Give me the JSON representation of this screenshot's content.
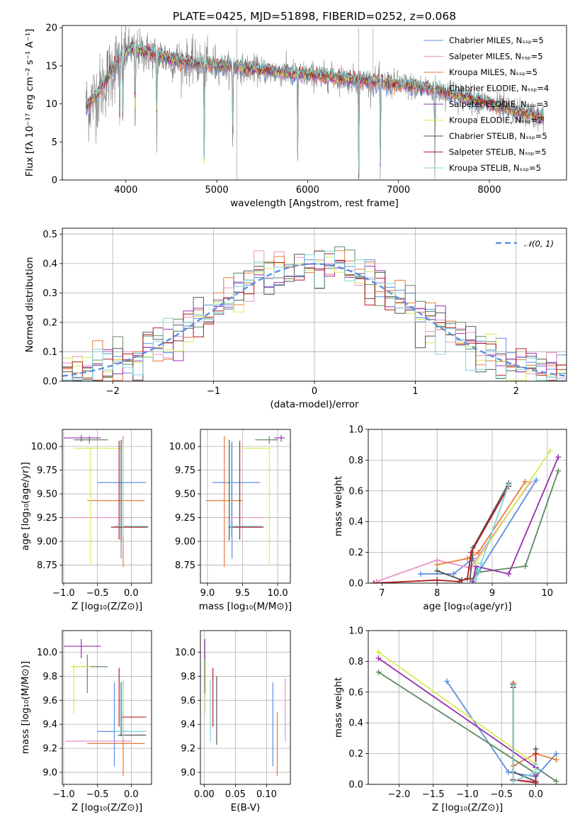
{
  "title": "PLATE=0425, MJD=51898, FIBERID=0252, z=0.068",
  "colors": {
    "chabrier_miles": "#5b8fe0",
    "salpeter_miles": "#e891c8",
    "kroupa_miles": "#e87a3a",
    "chabrier_elodie": "#5e8a60",
    "salpeter_elodie": "#9a2fb0",
    "kroupa_elodie": "#d6ec56",
    "chabrier_stelib": "#555555",
    "salpeter_stelib": "#b21f1f",
    "kroupa_stelib": "#7fd6dc",
    "data": "#808080"
  },
  "chart_data": [
    {
      "id": "spectrum",
      "type": "line",
      "xlabel": "wavelength [Angstrom, rest frame]",
      "ylabel": "Flux [fλ 10⁻¹⁷ erg cm⁻² s⁻¹ A⁻¹]",
      "xlim": [
        3300,
        8850
      ],
      "ylim": [
        0,
        20.3
      ],
      "xticks": [
        "4000",
        "5000",
        "6000",
        "7000",
        "8000"
      ],
      "yticks": [
        "0",
        "5",
        "10",
        "15",
        "20"
      ],
      "grid": false,
      "legend_position": "top-right",
      "legend": [
        "Chabrier MILES, Nₛₛₚ=5",
        "Salpeter MILES, Nₛₛₚ=5",
        "Kroupa MILES, Nₛₛₚ=5",
        "Chabrier ELODIE, Nₛₛₚ=4",
        "Salpeter ELODIE, Nₛₛₚ=3",
        "Kroupa ELODIE, Nₛₛₚ=2",
        "Chabrier STELIB, Nₛₛₚ=5",
        "Salpeter STELIB, Nₛₛₚ=5",
        "Kroupa STELIB, Nₛₛₚ=5"
      ],
      "continuum": [
        [
          3560,
          9.5
        ],
        [
          3700,
          11.5
        ],
        [
          3850,
          14.5
        ],
        [
          3950,
          16.5
        ],
        [
          4050,
          17.2
        ],
        [
          4200,
          16.8
        ],
        [
          4400,
          16.2
        ],
        [
          4600,
          15.6
        ],
        [
          4800,
          15.3
        ],
        [
          5000,
          15.0
        ],
        [
          5300,
          14.7
        ],
        [
          5600,
          14.3
        ],
        [
          5900,
          13.9
        ],
        [
          6200,
          13.6
        ],
        [
          6500,
          13.2
        ],
        [
          6800,
          12.8
        ],
        [
          7100,
          12.4
        ],
        [
          7400,
          11.9
        ],
        [
          7700,
          11.0
        ],
        [
          8000,
          10.0
        ],
        [
          8300,
          9.0
        ],
        [
          8600,
          8.2
        ]
      ],
      "absorption_lines": [
        [
          3933,
          4.5
        ],
        [
          3968,
          4.0
        ],
        [
          4861,
          0.5
        ],
        [
          4340,
          3.0
        ],
        [
          4102,
          4.0
        ],
        [
          5175,
          2.0
        ],
        [
          5890,
          1.0
        ],
        [
          6563,
          0.5
        ],
        [
          6800,
          0.0
        ],
        [
          7400,
          0.0
        ]
      ],
      "spikes": [
        [
          5220,
          0,
          20
        ],
        [
          6563,
          12,
          20
        ],
        [
          6720,
          11,
          20
        ]
      ]
    },
    {
      "id": "residuals",
      "type": "line",
      "xlabel": "(data-model)/error",
      "ylabel": "Normed distribution",
      "xlim": [
        -2.5,
        2.5
      ],
      "ylim": [
        0,
        0.52
      ],
      "xticks": [
        "−2",
        "−1",
        "0",
        "1",
        "2"
      ],
      "yticks": [
        "0.0",
        "0.1",
        "0.2",
        "0.3",
        "0.4",
        "0.5"
      ],
      "grid": true,
      "legend_position": "top-right",
      "reference_label": "𝒩(0, 1)",
      "bin_width": 0.1
    },
    {
      "id": "age_vs_Z",
      "type": "scatter",
      "xlabel": "Z [log₁₀(Z/Z⊙)]",
      "ylabel": "age  [log₁₀(age/yr)]",
      "xlim": [
        -1.02,
        0.3
      ],
      "ylim": [
        8.56,
        10.18
      ],
      "xticks": [
        "−1.0",
        "−0.5",
        "0.0"
      ],
      "yticks": [
        "8.75",
        "9.00",
        "9.25",
        "9.50",
        "9.75",
        "10.00"
      ],
      "grid": true,
      "points": [
        {
          "s": "chabrier_miles",
          "x": -0.15,
          "y": 9.62,
          "xe": [
            -0.5,
            0.22
          ],
          "ye": [
            8.82,
            10.05
          ]
        },
        {
          "s": "kroupa_miles",
          "x": -0.12,
          "y": 9.43,
          "xe": [
            -0.65,
            0.2
          ],
          "ye": [
            8.73,
            10.11
          ]
        },
        {
          "s": "salpeter_miles",
          "x": -0.45,
          "y": 9.25,
          "xe": [
            -0.98,
            0.0
          ],
          "ye": [
            9.25,
            9.25
          ]
        },
        {
          "s": "chabrier_elodie",
          "x": -0.62,
          "y": 10.07,
          "xe": [
            -0.85,
            -0.35
          ],
          "ye": [
            10.03,
            10.11
          ]
        },
        {
          "s": "salpeter_elodie",
          "x": -0.74,
          "y": 10.09,
          "xe": [
            -1.0,
            -0.45
          ],
          "ye": [
            10.05,
            10.12
          ]
        },
        {
          "s": "kroupa_elodie",
          "x": -0.6,
          "y": 9.98,
          "xe": [
            -0.85,
            -0.12
          ],
          "ye": [
            8.76,
            10.0
          ]
        },
        {
          "s": "chabrier_stelib",
          "x": -0.15,
          "y": 9.15,
          "xe": [
            -0.2,
            0.25
          ],
          "ye": [
            9.01,
            10.07
          ]
        },
        {
          "s": "salpeter_stelib",
          "x": -0.18,
          "y": 9.15,
          "xe": [
            -0.3,
            0.22
          ],
          "ye": [
            9.02,
            10.06
          ]
        },
        {
          "s": "kroupa_stelib",
          "x": -0.12,
          "y": 9.16,
          "xe": [
            -0.25,
            0.25
          ],
          "ye": [
            9.05,
            10.04
          ]
        }
      ]
    },
    {
      "id": "age_vs_mass",
      "type": "scatter",
      "xlabel": "mass [log₁₀(M/M⊙)]",
      "ylabel": "",
      "xlim": [
        8.9,
        10.18
      ],
      "ylim": [
        8.56,
        10.18
      ],
      "xticks": [
        "9.0",
        "9.5",
        "10.0"
      ],
      "yticks": [
        "8.75",
        "9.00",
        "9.25",
        "9.50",
        "9.75",
        "10.00"
      ],
      "grid": true,
      "points": [
        {
          "s": "chabrier_miles",
          "x": 9.35,
          "y": 9.62,
          "xe": [
            9.07,
            9.75
          ],
          "ye": [
            8.82,
            10.05
          ]
        },
        {
          "s": "kroupa_miles",
          "x": 9.24,
          "y": 9.43,
          "xe": [
            8.98,
            9.5
          ],
          "ye": [
            8.73,
            10.11
          ]
        },
        {
          "s": "salpeter_miles",
          "x": 9.26,
          "y": 9.25,
          "xe": [
            9.24,
            9.78
          ],
          "ye": [
            9.25,
            9.25
          ]
        },
        {
          "s": "chabrier_elodie",
          "x": 9.88,
          "y": 10.07,
          "xe": [
            9.68,
            10.0
          ],
          "ye": [
            10.03,
            10.11
          ]
        },
        {
          "s": "salpeter_elodie",
          "x": 10.05,
          "y": 10.09,
          "xe": [
            9.95,
            10.1
          ],
          "ye": [
            10.05,
            10.12
          ]
        },
        {
          "s": "kroupa_elodie",
          "x": 9.88,
          "y": 9.98,
          "xe": [
            9.5,
            9.9
          ],
          "ye": [
            8.76,
            10.0
          ]
        },
        {
          "s": "chabrier_stelib",
          "x": 9.31,
          "y": 9.15,
          "xe": [
            9.3,
            9.75
          ],
          "ye": [
            9.01,
            10.07
          ]
        },
        {
          "s": "salpeter_stelib",
          "x": 9.46,
          "y": 9.15,
          "xe": [
            9.38,
            9.8
          ],
          "ye": [
            9.02,
            10.06
          ]
        },
        {
          "s": "kroupa_stelib",
          "x": 9.34,
          "y": 9.16,
          "xe": [
            9.28,
            9.78
          ],
          "ye": [
            9.05,
            10.04
          ]
        }
      ]
    },
    {
      "id": "weight_vs_age",
      "type": "line",
      "xlabel": "age  [log₁₀(age/yr)]",
      "ylabel": "mass weight",
      "xlim": [
        6.75,
        10.35
      ],
      "ylim": [
        0,
        1.0
      ],
      "xticks": [
        "7",
        "8",
        "9",
        "10"
      ],
      "yticks": [
        "0.0",
        "0.2",
        "0.4",
        "0.6",
        "0.8",
        "1.0"
      ],
      "grid": true,
      "series": [
        {
          "s": "chabrier_miles",
          "x": [
            7.7,
            8.3,
            8.65,
            8.75,
            9.8
          ],
          "y": [
            0.06,
            0.06,
            0.16,
            0.07,
            0.67
          ]
        },
        {
          "s": "salpeter_miles",
          "x": [
            6.9,
            8.0,
            8.6,
            9.7
          ],
          "y": [
            0.01,
            0.15,
            0.1,
            0.66
          ]
        },
        {
          "s": "kroupa_miles",
          "x": [
            8.0,
            8.55,
            8.75,
            9.6
          ],
          "y": [
            0.12,
            0.16,
            0.2,
            0.66
          ]
        },
        {
          "s": "chabrier_elodie",
          "x": [
            8.65,
            8.72,
            9.6,
            10.2
          ],
          "y": [
            0.02,
            0.07,
            0.11,
            0.73
          ]
        },
        {
          "s": "salpeter_elodie",
          "x": [
            8.65,
            8.7,
            9.3,
            10.2
          ],
          "y": [
            0.01,
            0.11,
            0.06,
            0.82
          ]
        },
        {
          "s": "kroupa_elodie",
          "x": [
            8.7,
            10.05
          ],
          "y": [
            0.13,
            0.86
          ]
        },
        {
          "s": "chabrier_stelib",
          "x": [
            8.0,
            8.45,
            8.6,
            8.65,
            9.3
          ],
          "y": [
            0.08,
            0.02,
            0.03,
            0.23,
            0.65
          ]
        },
        {
          "s": "salpeter_stelib",
          "x": [
            6.85,
            8.0,
            8.4,
            8.55,
            8.62,
            9.3
          ],
          "y": [
            0.0,
            0.02,
            0.01,
            0.03,
            0.2,
            0.63
          ]
        },
        {
          "s": "kroupa_stelib",
          "x": [
            8.7,
            8.75,
            8.8,
            9.3
          ],
          "y": [
            0.02,
            0.08,
            0.13,
            0.64
          ]
        }
      ]
    },
    {
      "id": "mass_vs_Z",
      "type": "scatter",
      "xlabel": "Z [log₁₀(Z/Z⊙)]",
      "ylabel": "mass [log₁₀(M/M⊙)]",
      "xlim": [
        -1.02,
        0.3
      ],
      "ylim": [
        8.9,
        10.18
      ],
      "xticks": [
        "−1.0",
        "−0.5",
        "0.0"
      ],
      "yticks": [
        "9.0",
        "9.2",
        "9.4",
        "9.6",
        "9.8",
        "10.0"
      ],
      "grid": true,
      "points": [
        {
          "s": "chabrier_miles",
          "x": -0.25,
          "y": 9.34,
          "xe": [
            -0.5,
            0.22
          ],
          "ye": [
            9.05,
            9.75
          ]
        },
        {
          "s": "kroupa_miles",
          "x": -0.12,
          "y": 9.24,
          "xe": [
            -0.65,
            0.2
          ],
          "ye": [
            8.97,
            9.5
          ]
        },
        {
          "s": "salpeter_miles",
          "x": -0.45,
          "y": 9.26,
          "xe": [
            -0.98,
            0.0
          ],
          "ye": [
            9.26,
            9.26
          ]
        },
        {
          "s": "chabrier_elodie",
          "x": -0.65,
          "y": 9.88,
          "xe": [
            -0.85,
            -0.35
          ],
          "ye": [
            9.66,
            9.98
          ]
        },
        {
          "s": "salpeter_elodie",
          "x": -0.74,
          "y": 10.05,
          "xe": [
            -1.0,
            -0.45
          ],
          "ye": [
            9.95,
            10.11
          ]
        },
        {
          "s": "kroupa_elodie",
          "x": -0.85,
          "y": 9.88,
          "xe": [
            -0.9,
            -0.6
          ],
          "ye": [
            9.49,
            9.9
          ]
        },
        {
          "s": "chabrier_stelib",
          "x": -0.15,
          "y": 9.31,
          "xe": [
            -0.2,
            0.22
          ],
          "ye": [
            9.3,
            9.75
          ]
        },
        {
          "s": "salpeter_stelib",
          "x": -0.18,
          "y": 9.46,
          "xe": [
            -0.15,
            0.22
          ],
          "ye": [
            9.38,
            9.87
          ]
        },
        {
          "s": "kroupa_stelib",
          "x": -0.12,
          "y": 9.34,
          "xe": [
            -0.25,
            0.22
          ],
          "ye": [
            9.28,
            9.77
          ]
        }
      ]
    },
    {
      "id": "mass_vs_ebv",
      "type": "scatter",
      "xlabel": "E(B-V)",
      "ylabel": "",
      "xlim": [
        -0.006,
        0.138
      ],
      "ylim": [
        8.9,
        10.18
      ],
      "xticks": [
        "0.00",
        "0.05",
        "0.10"
      ],
      "yticks": [
        "9.0",
        "9.2",
        "9.4",
        "9.6",
        "9.8",
        "10.0"
      ],
      "grid": true,
      "points": [
        {
          "s": "chabrier_miles",
          "x": 0.11,
          "y": 9.34,
          "xe": [
            0.11,
            0.11
          ],
          "ye": [
            9.05,
            9.75
          ]
        },
        {
          "s": "kroupa_miles",
          "x": 0.117,
          "y": 9.24,
          "xe": [
            0.117,
            0.117
          ],
          "ye": [
            8.97,
            9.5
          ]
        },
        {
          "s": "salpeter_miles",
          "x": 0.13,
          "y": 9.26,
          "xe": [
            0.13,
            0.13
          ],
          "ye": [
            9.26,
            9.78
          ]
        },
        {
          "s": "chabrier_elodie",
          "x": 0.001,
          "y": 9.88,
          "xe": [
            0.001,
            0.001
          ],
          "ye": [
            9.66,
            9.98
          ]
        },
        {
          "s": "salpeter_elodie",
          "x": 0.001,
          "y": 10.05,
          "xe": [
            0.001,
            0.001
          ],
          "ye": [
            9.95,
            10.11
          ]
        },
        {
          "s": "kroupa_elodie",
          "x": 0.002,
          "y": 9.88,
          "xe": [
            0.002,
            0.002
          ],
          "ye": [
            9.49,
            9.9
          ]
        },
        {
          "s": "chabrier_stelib",
          "x": 0.02,
          "y": 9.31,
          "xe": [
            0.02,
            0.02
          ],
          "ye": [
            9.23,
            9.8
          ]
        },
        {
          "s": "salpeter_stelib",
          "x": 0.014,
          "y": 9.46,
          "xe": [
            0.014,
            0.014
          ],
          "ye": [
            9.38,
            9.87
          ]
        },
        {
          "s": "kroupa_stelib",
          "x": 0.01,
          "y": 9.34,
          "xe": [
            0.01,
            0.01
          ],
          "ye": [
            9.25,
            9.77
          ]
        }
      ]
    },
    {
      "id": "weight_vs_Z",
      "type": "line",
      "xlabel": "Z [log₁₀(Z/Z⊙)]",
      "ylabel": "mass weight",
      "xlim": [
        -2.45,
        0.45
      ],
      "ylim": [
        0,
        1.0
      ],
      "xticks": [
        "−2.0",
        "−1.5",
        "−1.0",
        "−0.5",
        "0.0"
      ],
      "yticks": [
        "0.0",
        "0.2",
        "0.4",
        "0.6",
        "0.8",
        "1.0"
      ],
      "grid": true,
      "series": [
        {
          "s": "chabrier_miles",
          "x": [
            -1.3,
            -0.4,
            0.0,
            0.3
          ],
          "y": [
            0.67,
            0.08,
            0.05,
            0.2
          ]
        },
        {
          "s": "salpeter_miles",
          "x": [
            -0.33,
            0.0
          ],
          "y": [
            0.03,
            0.02
          ]
        },
        {
          "s": "kroupa_miles",
          "x": [
            -0.33,
            -0.33,
            0.0,
            0.3
          ],
          "y": [
            0.66,
            0.12,
            0.2,
            0.16
          ]
        },
        {
          "s": "chabrier_elodie",
          "x": [
            -2.3,
            0.0,
            0.0,
            0.3
          ],
          "y": [
            0.73,
            0.07,
            0.11,
            0.02
          ]
        },
        {
          "s": "salpeter_elodie",
          "x": [
            -2.3,
            0.0,
            0.0
          ],
          "y": [
            0.82,
            0.11,
            0.06
          ]
        },
        {
          "s": "kroupa_elodie",
          "x": [
            -2.3,
            0.0
          ],
          "y": [
            0.86,
            0.13
          ]
        },
        {
          "s": "chabrier_stelib",
          "x": [
            -0.33,
            -0.33,
            0.0,
            0.0
          ],
          "y": [
            0.65,
            0.08,
            0.02,
            0.23
          ]
        },
        {
          "s": "salpeter_stelib",
          "x": [
            -0.33,
            -0.33,
            0.0,
            0.0
          ],
          "y": [
            0.63,
            0.03,
            0.01,
            0.2
          ]
        },
        {
          "s": "kroupa_stelib",
          "x": [
            -0.33,
            -0.33,
            0.0,
            0.0
          ],
          "y": [
            0.64,
            0.02,
            0.08,
            0.13
          ]
        }
      ]
    }
  ]
}
